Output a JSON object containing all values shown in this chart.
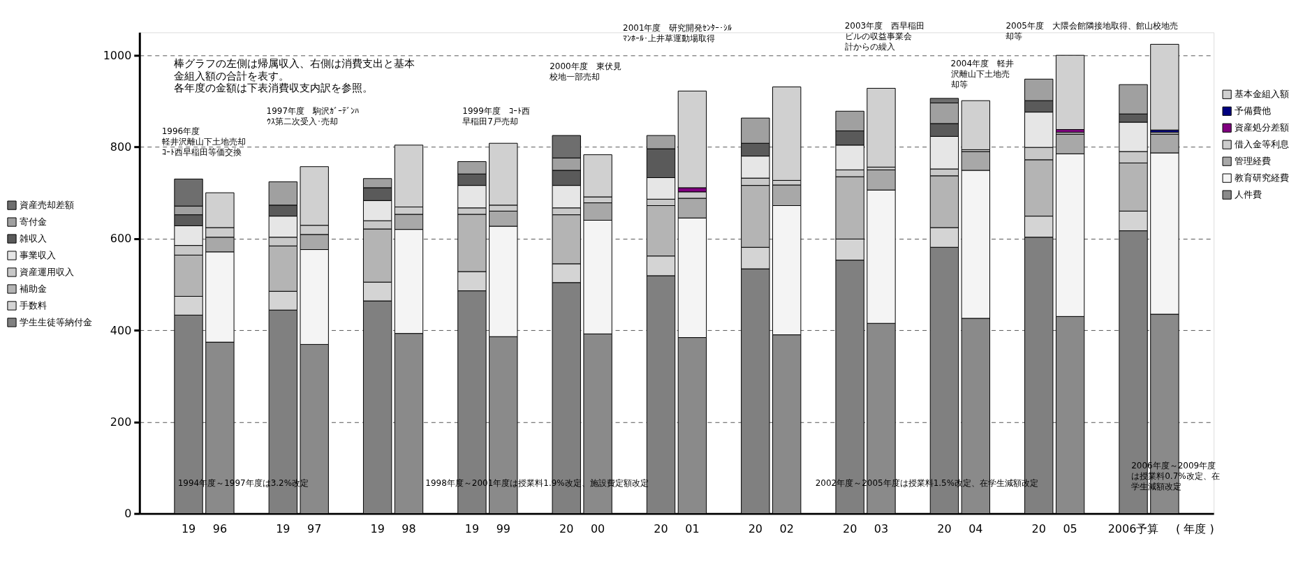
{
  "chart_data": {
    "type": "bar",
    "stacked": true,
    "xlabel": "( 年度 )",
    "categories": [
      "19",
      "96",
      "19",
      "97",
      "19",
      "98",
      "19",
      "99",
      "20",
      "00",
      "20",
      "01",
      "20",
      "02",
      "20",
      "03",
      "20",
      "04",
      "20",
      "05",
      "2006予算",
      null
    ],
    "legend": "left",
    "ylim": [
      0,
      1050
    ],
    "yticks": [
      0,
      200,
      400,
      600,
      800,
      1000
    ],
    "grid": "y",
    "series": [
      {
        "name": "学生生徒等納付金",
        "color": "#808080",
        "values": [
          433,
          null,
          444,
          null,
          464,
          null,
          486,
          null,
          504,
          null,
          519,
          null,
          534,
          null,
          553,
          null,
          581,
          null,
          603,
          null,
          617,
          null
        ]
      },
      {
        "name": "手数料",
        "color": "#d4d4d4",
        "values": [
          41,
          null,
          41,
          null,
          41,
          null,
          42,
          null,
          41,
          null,
          43,
          null,
          47,
          null,
          46,
          null,
          43,
          null,
          46,
          null,
          43,
          null
        ]
      },
      {
        "name": "補助金",
        "color": "#b4b4b4",
        "values": [
          90,
          null,
          99,
          null,
          116,
          null,
          125,
          null,
          107,
          null,
          110,
          null,
          135,
          null,
          136,
          null,
          113,
          null,
          123,
          null,
          105,
          null
        ]
      },
      {
        "name": "資産運用収入",
        "color": "#c8c8c8",
        "values": [
          21,
          null,
          19,
          null,
          18,
          null,
          14,
          null,
          15,
          null,
          14,
          null,
          16,
          null,
          15,
          null,
          15,
          null,
          27,
          null,
          25,
          null
        ]
      },
      {
        "name": "事業収入",
        "color": "#e6e6e6",
        "values": [
          43,
          null,
          46,
          null,
          44,
          null,
          49,
          null,
          49,
          null,
          47,
          null,
          48,
          null,
          54,
          null,
          71,
          null,
          77,
          null,
          64,
          null
        ]
      },
      {
        "name": "雑収入",
        "color": "#5a5a5a",
        "values": [
          24,
          null,
          24,
          null,
          28,
          null,
          25,
          null,
          33,
          null,
          63,
          null,
          28,
          null,
          31,
          null,
          28,
          null,
          25,
          null,
          18,
          null
        ]
      },
      {
        "name": "寄付金",
        "color": "#a0a0a0",
        "values": [
          19,
          null,
          51,
          null,
          20,
          null,
          27,
          null,
          27,
          null,
          29,
          null,
          55,
          null,
          43,
          null,
          45,
          null,
          47,
          null,
          64,
          null
        ]
      },
      {
        "name": "資産売却差額",
        "color": "#6e6e6e",
        "values": [
          59,
          null,
          null,
          null,
          null,
          null,
          null,
          null,
          49,
          null,
          null,
          null,
          null,
          null,
          null,
          null,
          10,
          null,
          null,
          null,
          null,
          null
        ]
      },
      {
        "name": "人件費",
        "color": "#8a8a8a",
        "values": [
          null,
          374,
          null,
          369,
          null,
          393,
          null,
          386,
          null,
          392,
          null,
          384,
          null,
          390,
          null,
          415,
          null,
          426,
          null,
          430,
          null,
          435
        ]
      },
      {
        "name": "教育研究経費",
        "color": "#f4f4f4",
        "values": [
          null,
          197,
          null,
          207,
          null,
          227,
          null,
          241,
          null,
          248,
          null,
          261,
          null,
          282,
          null,
          291,
          null,
          323,
          null,
          355,
          null,
          352
        ]
      },
      {
        "name": "管理経費",
        "color": "#a8a8a8",
        "values": [
          null,
          32,
          null,
          33,
          null,
          33,
          null,
          33,
          null,
          38,
          null,
          43,
          null,
          45,
          null,
          44,
          null,
          41,
          null,
          43,
          null,
          41
        ]
      },
      {
        "name": "借入金等利息",
        "color": "#cccccc",
        "values": [
          null,
          21,
          null,
          20,
          null,
          16,
          null,
          13,
          null,
          13,
          null,
          14,
          null,
          10,
          null,
          6,
          null,
          4,
          null,
          4,
          null,
          4
        ]
      },
      {
        "name": "資産処分差額",
        "color": "#800080",
        "values": [
          null,
          null,
          null,
          null,
          null,
          null,
          null,
          null,
          null,
          null,
          null,
          9,
          null,
          null,
          null,
          null,
          null,
          null,
          null,
          6,
          null,
          null
        ]
      },
      {
        "name": "予備費他",
        "color": "#000080",
        "values": [
          null,
          null,
          null,
          null,
          null,
          null,
          null,
          null,
          null,
          null,
          null,
          null,
          null,
          null,
          null,
          null,
          null,
          null,
          null,
          null,
          null,
          5
        ]
      },
      {
        "name": "基本金組入額",
        "color": "#d0d0d0",
        "values": [
          null,
          76,
          null,
          128,
          null,
          135,
          null,
          135,
          null,
          92,
          null,
          211,
          null,
          204,
          null,
          172,
          null,
          107,
          null,
          162,
          null,
          187
        ]
      }
    ],
    "annotations": [
      "棒グラフの左側は帰属収入、右側は消費支出と基本金組入額の合計を表す。",
      "各年度の金額は下表消費収支内訳を参照。",
      "1996年度軽井沢離山下土地売却ｺｰﾄ西早稲田等価交換",
      "1997年度　駒沢ｶﾞｰﾃﾞﾝﾊｳｽ第二次受入･売却",
      "1999年度　ｺｰﾄ西早稲田7戸売却",
      "2000年度　東伏見校地一部売却",
      "2001年度　研究開発ｾﾝﾀｰ･ｼﾙﾏﾝﾎｰﾙ･上井草運動場取得",
      "2003年度　西早稲田ビルの収益事業会計からの繰入",
      "2004年度　軽井沢離山下土地売却等",
      "2005年度　大隈会館隣接地取得、館山校地売却等",
      "1994年度～1997年度は3.2%改定",
      "1998年度～2001年度は授業料1.9%改定、施設費定額改定",
      "2002年度～2005年度は授業料1.5%改定、在学生減額改定",
      "2006年度～2009年度は授業料0.7%改定、在学生減額改定"
    ]
  }
}
